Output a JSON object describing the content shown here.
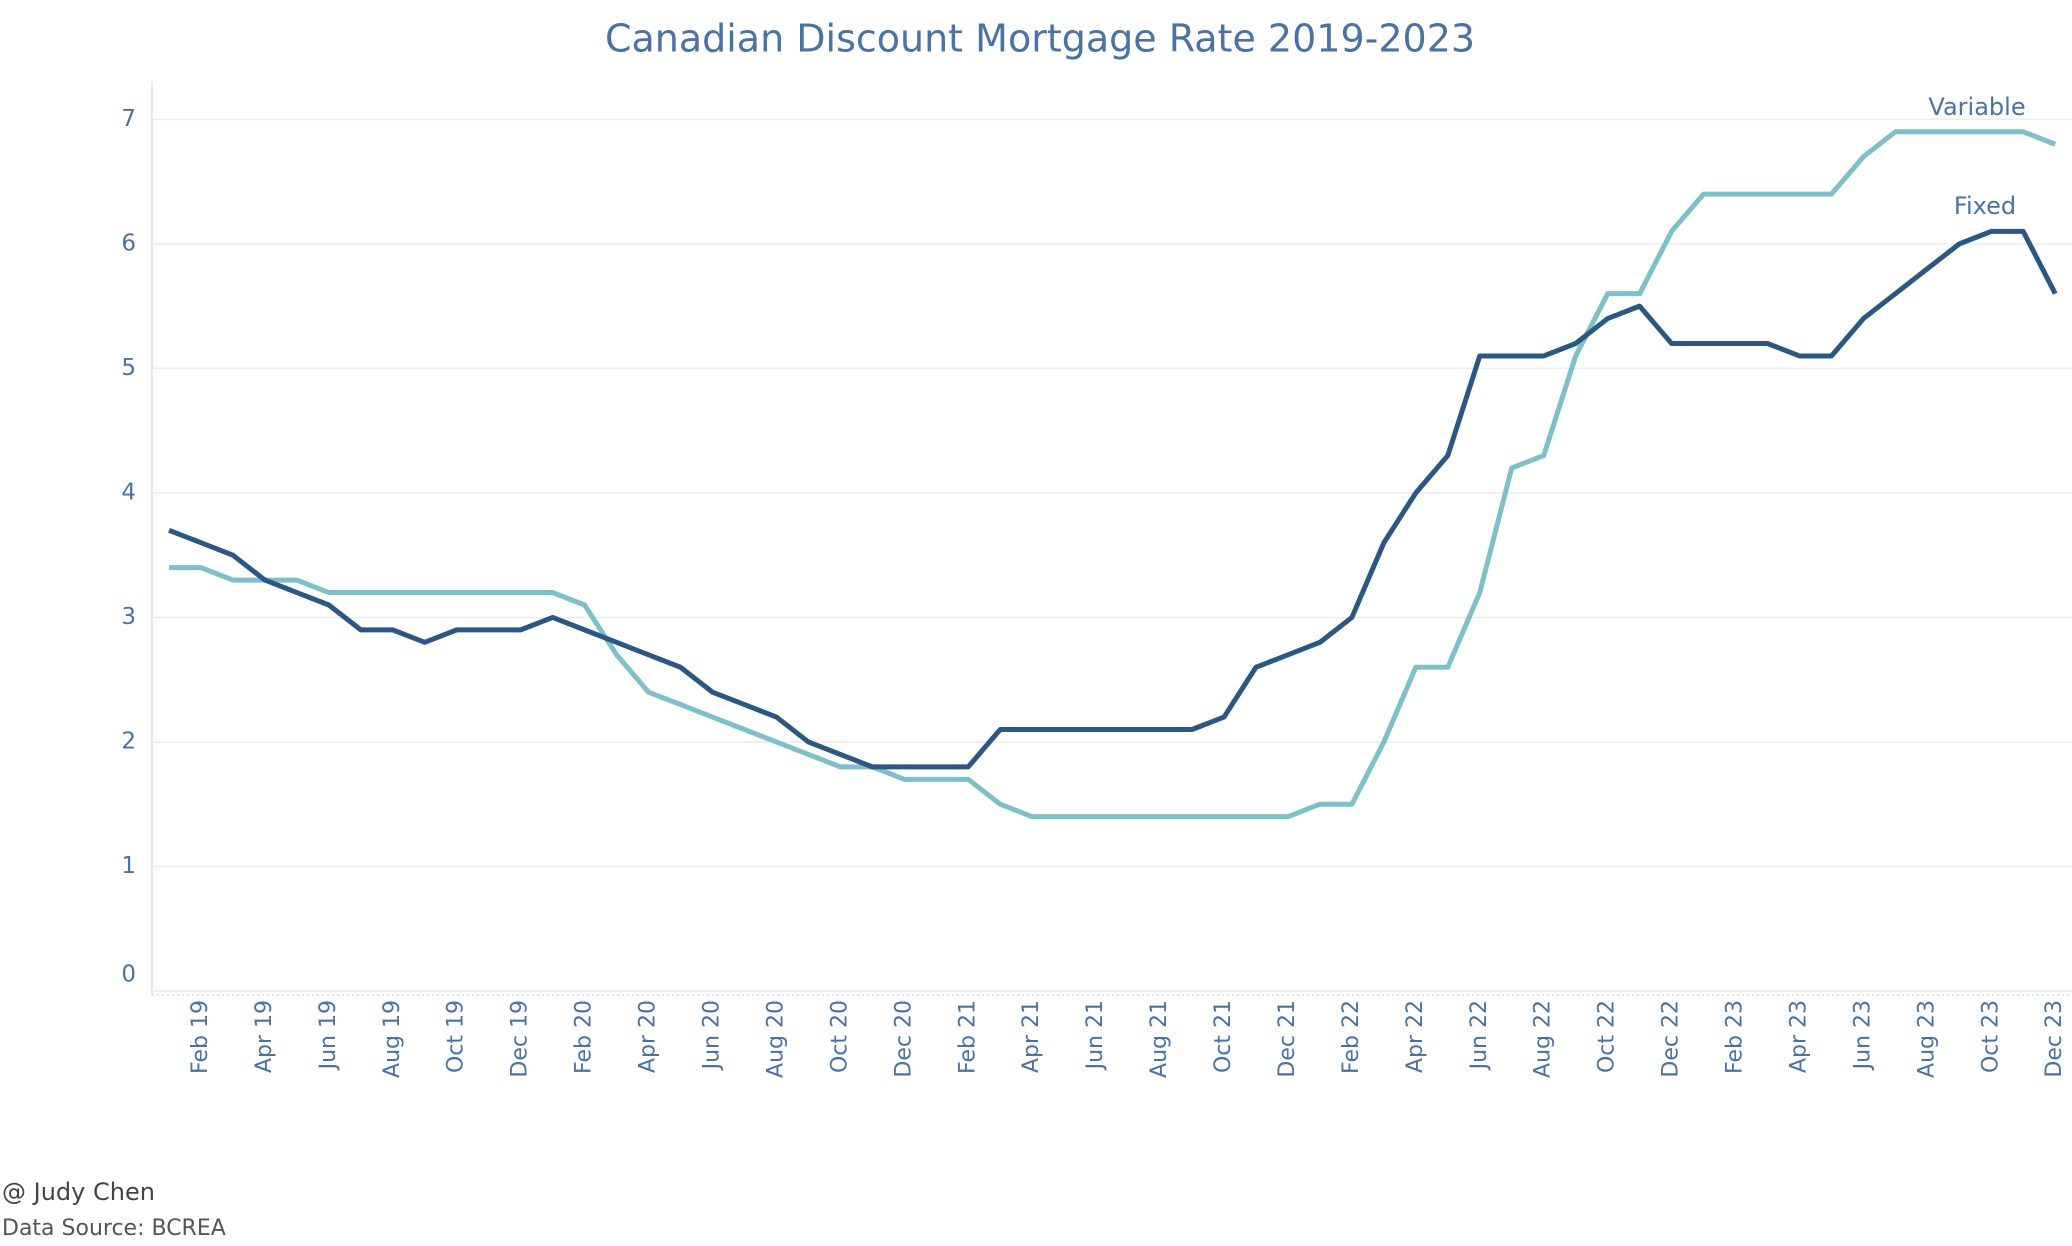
{
  "chart_data": {
    "type": "line",
    "title": "Canadian Discount Mortgage Rate 2019-2023",
    "categories": [
      null,
      "Feb 19",
      null,
      "Apr 19",
      null,
      "Jun 19",
      null,
      "Aug 19",
      null,
      "Oct 19",
      null,
      "Dec 19",
      null,
      "Feb 20",
      null,
      "Apr 20",
      null,
      "Jun 20",
      null,
      "Aug 20",
      null,
      "Oct 20",
      null,
      "Dec 20",
      null,
      "Feb 21",
      null,
      "Apr 21",
      null,
      "Jun 21",
      null,
      "Aug 21",
      null,
      "Oct 21",
      null,
      "Dec 21",
      null,
      "Feb 22",
      null,
      "Apr 22",
      null,
      "Jun 22",
      null,
      "Aug 22",
      null,
      "Oct 22",
      null,
      "Dec 22",
      null,
      "Feb 23",
      null,
      "Apr 23",
      null,
      "Jun 23",
      null,
      "Aug 23",
      null,
      "Oct 23",
      null,
      "Dec 23"
    ],
    "series": [
      {
        "name": "Variable",
        "color": "#7fbfc8",
        "values": [
          3.4,
          3.4,
          3.3,
          3.3,
          3.3,
          3.2,
          3.2,
          3.2,
          3.2,
          3.2,
          3.2,
          3.2,
          3.2,
          3.1,
          2.7,
          2.4,
          2.3,
          2.2,
          2.1,
          2.0,
          1.9,
          1.8,
          1.8,
          1.7,
          1.7,
          1.7,
          1.5,
          1.4,
          1.4,
          1.4,
          1.4,
          1.4,
          1.4,
          1.4,
          1.4,
          1.4,
          1.5,
          1.5,
          2.0,
          2.6,
          2.6,
          3.2,
          4.2,
          4.3,
          5.1,
          5.6,
          5.6,
          6.1,
          6.4,
          6.4,
          6.4,
          6.4,
          6.4,
          6.7,
          6.9,
          6.9,
          6.9,
          6.9,
          6.9,
          6.8
        ]
      },
      {
        "name": "Fixed",
        "color": "#2a5783",
        "values": [
          3.7,
          3.6,
          3.5,
          3.3,
          3.2,
          3.1,
          2.9,
          2.9,
          2.8,
          2.9,
          2.9,
          2.9,
          3.0,
          2.9,
          2.8,
          2.7,
          2.6,
          2.4,
          2.3,
          2.2,
          2.0,
          1.9,
          1.8,
          1.8,
          1.8,
          1.8,
          2.1,
          2.1,
          2.1,
          2.1,
          2.1,
          2.1,
          2.1,
          2.2,
          2.6,
          2.7,
          2.8,
          3.0,
          3.6,
          4.0,
          4.3,
          5.1,
          5.1,
          5.1,
          5.2,
          5.4,
          5.5,
          5.2,
          5.2,
          5.2,
          5.2,
          5.1,
          5.1,
          5.4,
          5.6,
          5.8,
          6.0,
          6.1,
          6.1,
          5.6
        ]
      }
    ],
    "ylim": [
      0,
      7.3
    ],
    "yticks": [
      0,
      1,
      2,
      3,
      4,
      5,
      6,
      7
    ],
    "grid": true,
    "credit": "@ Judy Chen",
    "source": "Data Source: BCREA"
  }
}
